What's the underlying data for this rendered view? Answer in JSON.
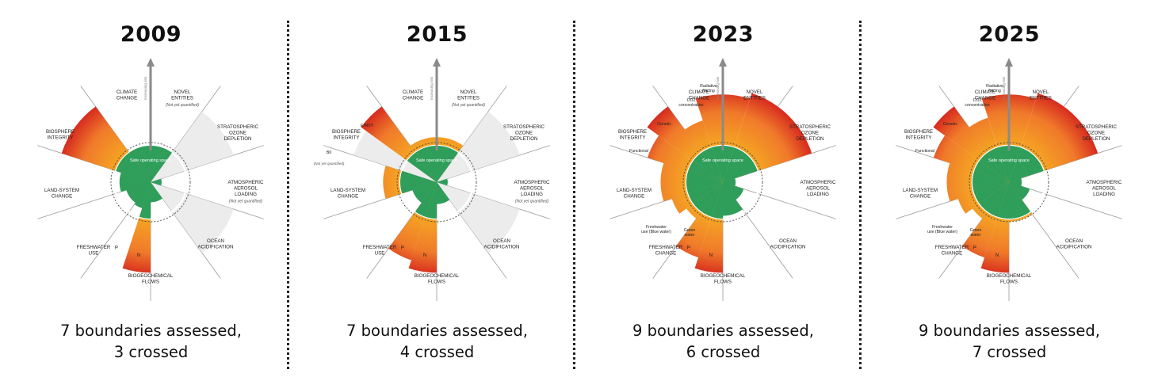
{
  "colors": {
    "safe": "#2e9e5a",
    "safe_dark": "#1f7d44",
    "orange": "#f5a623",
    "red": "#e8452c",
    "dark_red": "#d62b1f",
    "grey": "#d4d4d4",
    "line": "#9a9a9a"
  },
  "panels": [
    {
      "year": "2009",
      "caption_line1": "7 boundaries assessed,",
      "caption_line2": "3 crossed",
      "center_label": "Safe operating space",
      "arrow_label": "Increasing risk",
      "sectors": [
        {
          "label": "Climate change",
          "level": 0.78,
          "color": "orange",
          "start": 0,
          "end": 36
        },
        {
          "label": "Novel entities",
          "level": 0,
          "color": "grey",
          "start": 36,
          "end": 72
        },
        {
          "label": "Stratospheric ozone depletion",
          "level": 0.3,
          "color": "safe",
          "start": 72,
          "end": 108
        },
        {
          "label": "Atmospheric aerosol loading",
          "level": 0,
          "color": "grey",
          "start": 108,
          "end": 144
        },
        {
          "label": "Ocean acidification",
          "level": 0.55,
          "color": "safe",
          "start": 144,
          "end": 180
        },
        {
          "label": "N",
          "level": 1.95,
          "color": "red",
          "start": 180,
          "end": 198
        },
        {
          "label": "P",
          "level": 0.75,
          "color": "safe",
          "start": 198,
          "end": 216
        },
        {
          "label": "Freshwater use",
          "level": 0.7,
          "color": "safe",
          "start": 216,
          "end": 252
        },
        {
          "label": "Land-system change",
          "level": 0.85,
          "color": "safe",
          "start": 252,
          "end": 288
        },
        {
          "label": "Biosphere integrity",
          "level": 2.0,
          "color": "red",
          "start": 288,
          "end": 324
        },
        {
          "label": "Climate change",
          "level": 0.78,
          "color": "orange",
          "start": 324,
          "end": 360
        }
      ],
      "labels": [
        {
          "text": "CLIMATE CHANGE",
          "sub": ""
        },
        {
          "text": "NOVEL ENTITIES",
          "sub": "(Not yet quantified)"
        },
        {
          "text": "STRATOSPHERIC OZONE DEPLETION",
          "sub": ""
        },
        {
          "text": "ATMOSPHERIC AEROSOL LOADING",
          "sub": "(Not yet quantified)"
        },
        {
          "text": "OCEAN ACIDIFICATION",
          "sub": ""
        },
        {
          "text": "BIOGEOCHEMICAL FLOWS",
          "sub": ""
        },
        {
          "text": "FRESHWATER USE",
          "sub": ""
        },
        {
          "text": "LAND-SYSTEM CHANGE",
          "sub": ""
        },
        {
          "text": "BIOSPHERE INTEGRITY",
          "sub": ""
        }
      ],
      "inner_labels": [
        "P",
        "N"
      ]
    },
    {
      "year": "2015",
      "caption_line1": "7 boundaries assessed,",
      "caption_line2": "4 crossed",
      "center_label": "Safe operating space",
      "arrow_label": "Increasing risk",
      "sectors": [
        {
          "label": "Climate change",
          "level": 1.15,
          "color": "orange",
          "start": 0,
          "end": 36
        },
        {
          "label": "Novel entities",
          "level": 0,
          "color": "grey",
          "start": 36,
          "end": 72
        },
        {
          "label": "Stratospheric ozone depletion",
          "level": 0.3,
          "color": "safe",
          "start": 72,
          "end": 108
        },
        {
          "label": "Atmospheric aerosol loading",
          "level": 0,
          "color": "grey",
          "start": 108,
          "end": 144
        },
        {
          "label": "Ocean acidification",
          "level": 0.6,
          "color": "safe",
          "start": 144,
          "end": 180
        },
        {
          "label": "N",
          "level": 1.95,
          "color": "red",
          "start": 180,
          "end": 198
        },
        {
          "label": "P",
          "level": 1.8,
          "color": "red",
          "start": 198,
          "end": 216
        },
        {
          "label": "Freshwater use",
          "level": 0.7,
          "color": "safe",
          "start": 216,
          "end": 252
        },
        {
          "label": "Land-system change",
          "level": 1.3,
          "color": "orange",
          "start": 252,
          "end": 288
        },
        {
          "label": "BII",
          "level": 0,
          "color": "grey",
          "start": 288,
          "end": 306
        },
        {
          "label": "E/MSY",
          "level": 2.0,
          "color": "red",
          "start": 306,
          "end": 324
        },
        {
          "label": "Climate change",
          "level": 1.15,
          "color": "orange",
          "start": 324,
          "end": 360
        }
      ],
      "labels": [
        {
          "text": "CLIMATE CHANGE",
          "sub": ""
        },
        {
          "text": "NOVEL ENTITIES",
          "sub": "(Not yet quantified)"
        },
        {
          "text": "STRATOSPHERIC OZONE DEPLETION",
          "sub": ""
        },
        {
          "text": "ATMOSPHERIC AEROSOL LOADING",
          "sub": "(Not yet quantified)"
        },
        {
          "text": "OCEAN ACIDIFICATION",
          "sub": ""
        },
        {
          "text": "BIOGEOCHEMICAL FLOWS",
          "sub": ""
        },
        {
          "text": "FRESHWATER USE",
          "sub": ""
        },
        {
          "text": "LAND-SYSTEM CHANGE",
          "sub": ""
        },
        {
          "text": "BIOSPHERE INTEGRITY",
          "sub": ""
        }
      ],
      "extra_labels": {
        "bii": "BII",
        "bii_sub": "(Not yet quantified)",
        "emsy": "E/MSY"
      },
      "inner_labels": [
        "P",
        "N"
      ]
    },
    {
      "year": "2023",
      "caption_line1": "9 boundaries assessed,",
      "caption_line2": "6 crossed",
      "center_label": "Safe operating space",
      "arrow_label": "Increasing risk",
      "sectors": [
        {
          "label": "Radiative forcing",
          "level": 1.9,
          "color": "red",
          "start": 0,
          "end": 18
        },
        {
          "label": "Novel entities",
          "level": 2.0,
          "color": "red",
          "start": 18,
          "end": 72
        },
        {
          "label": "Stratospheric ozone depletion",
          "level": 0.35,
          "color": "safe",
          "start": 72,
          "end": 108
        },
        {
          "label": "Atmospheric aerosol loading",
          "level": 0.6,
          "color": "safe",
          "start": 108,
          "end": 144
        },
        {
          "label": "Ocean acidification",
          "level": 0.92,
          "color": "safe",
          "start": 144,
          "end": 180
        },
        {
          "label": "N",
          "level": 1.95,
          "color": "red",
          "start": 180,
          "end": 198
        },
        {
          "label": "P",
          "level": 1.75,
          "color": "red",
          "start": 198,
          "end": 216
        },
        {
          "label": "Green water",
          "level": 1.15,
          "color": "orange",
          "start": 216,
          "end": 234
        },
        {
          "label": "Freshwater use (Blue water)",
          "level": 1.3,
          "color": "orange",
          "start": 234,
          "end": 252
        },
        {
          "label": "Land-system change",
          "level": 1.45,
          "color": "orange",
          "start": 252,
          "end": 288
        },
        {
          "label": "Functional",
          "level": 1.75,
          "color": "red",
          "start": 288,
          "end": 306
        },
        {
          "label": "Genetic",
          "level": 2.0,
          "color": "red",
          "start": 306,
          "end": 324
        },
        {
          "label": "CO2 concentration",
          "level": 1.5,
          "color": "orange",
          "start": 324,
          "end": 342
        },
        {
          "label": "Radiative forcing",
          "level": 1.9,
          "color": "red",
          "start": 342,
          "end": 360
        }
      ],
      "labels": [
        {
          "text": "CLIMATE CHANGE",
          "sub": ""
        },
        {
          "text": "NOVEL ENTITIES",
          "sub": ""
        },
        {
          "text": "STRATOSPHERIC OZONE DEPLETION",
          "sub": ""
        },
        {
          "text": "ATMOSPHERIC AEROSOL LOADING",
          "sub": ""
        },
        {
          "text": "OCEAN ACIDIFICATION",
          "sub": ""
        },
        {
          "text": "BIOGEOCHEMICAL FLOWS",
          "sub": ""
        },
        {
          "text": "FRESHWATER CHANGE",
          "sub": ""
        },
        {
          "text": "LAND-SYSTEM CHANGE",
          "sub": ""
        },
        {
          "text": "BIOSPHERE INTEGRITY",
          "sub": ""
        }
      ],
      "extra_labels": {
        "co2": "CO2 concentration",
        "radiative": "Radiative forcing",
        "genetic": "Genetic",
        "functional": "Functional",
        "blue": "Freshwater use (Blue water)",
        "green": "Green water"
      },
      "inner_labels": [
        "P",
        "N"
      ]
    },
    {
      "year": "2025",
      "caption_line1": "9 boundaries assessed,",
      "caption_line2": "7 crossed",
      "center_label": "Safe operating space",
      "arrow_label": "Increasing risk",
      "sectors": [
        {
          "label": "Radiative forcing",
          "level": 1.9,
          "color": "red",
          "start": 0,
          "end": 18
        },
        {
          "label": "Novel entities",
          "level": 2.0,
          "color": "red",
          "start": 18,
          "end": 72
        },
        {
          "label": "Stratospheric ozone depletion",
          "level": 0.35,
          "color": "safe",
          "start": 72,
          "end": 108
        },
        {
          "label": "Atmospheric aerosol loading",
          "level": 0.6,
          "color": "safe",
          "start": 108,
          "end": 144
        },
        {
          "label": "Ocean acidification",
          "level": 1.05,
          "color": "orange",
          "start": 144,
          "end": 180
        },
        {
          "label": "N",
          "level": 1.95,
          "color": "red",
          "start": 180,
          "end": 198
        },
        {
          "label": "P",
          "level": 1.75,
          "color": "red",
          "start": 198,
          "end": 216
        },
        {
          "label": "Green water",
          "level": 1.15,
          "color": "orange",
          "start": 216,
          "end": 234
        },
        {
          "label": "Freshwater use (Blue water)",
          "level": 1.3,
          "color": "orange",
          "start": 234,
          "end": 252
        },
        {
          "label": "Land-system change",
          "level": 1.45,
          "color": "orange",
          "start": 252,
          "end": 288
        },
        {
          "label": "Functional",
          "level": 1.75,
          "color": "red",
          "start": 288,
          "end": 306
        },
        {
          "label": "Genetic",
          "level": 2.0,
          "color": "red",
          "start": 306,
          "end": 324
        },
        {
          "label": "CO2 concentration",
          "level": 1.55,
          "color": "orange",
          "start": 324,
          "end": 342
        },
        {
          "label": "Radiative forcing",
          "level": 1.9,
          "color": "red",
          "start": 342,
          "end": 360
        }
      ],
      "labels": [
        {
          "text": "CLIMATE CHANGE",
          "sub": ""
        },
        {
          "text": "NOVEL ENTITIES",
          "sub": ""
        },
        {
          "text": "STRATOSPHERIC OZONE DEPLETION",
          "sub": ""
        },
        {
          "text": "ATMOSPHERIC AEROSOL LOADING",
          "sub": ""
        },
        {
          "text": "OCEAN ACIDIFICATION",
          "sub": ""
        },
        {
          "text": "BIOGEOCHEMICAL FLOWS",
          "sub": ""
        },
        {
          "text": "FRESHWATER CHANGE",
          "sub": ""
        },
        {
          "text": "LAND-SYSTEM CHANGE",
          "sub": ""
        },
        {
          "text": "BIOSPHERE INTEGRITY",
          "sub": ""
        }
      ],
      "extra_labels": {
        "co2": "CO2 concentration",
        "radiative": "Radiative forcing",
        "genetic": "Genetic",
        "functional": "Functional",
        "blue": "Freshwater use (Blue water)",
        "green": "Green water"
      },
      "inner_labels": [
        "P",
        "N"
      ]
    }
  ]
}
